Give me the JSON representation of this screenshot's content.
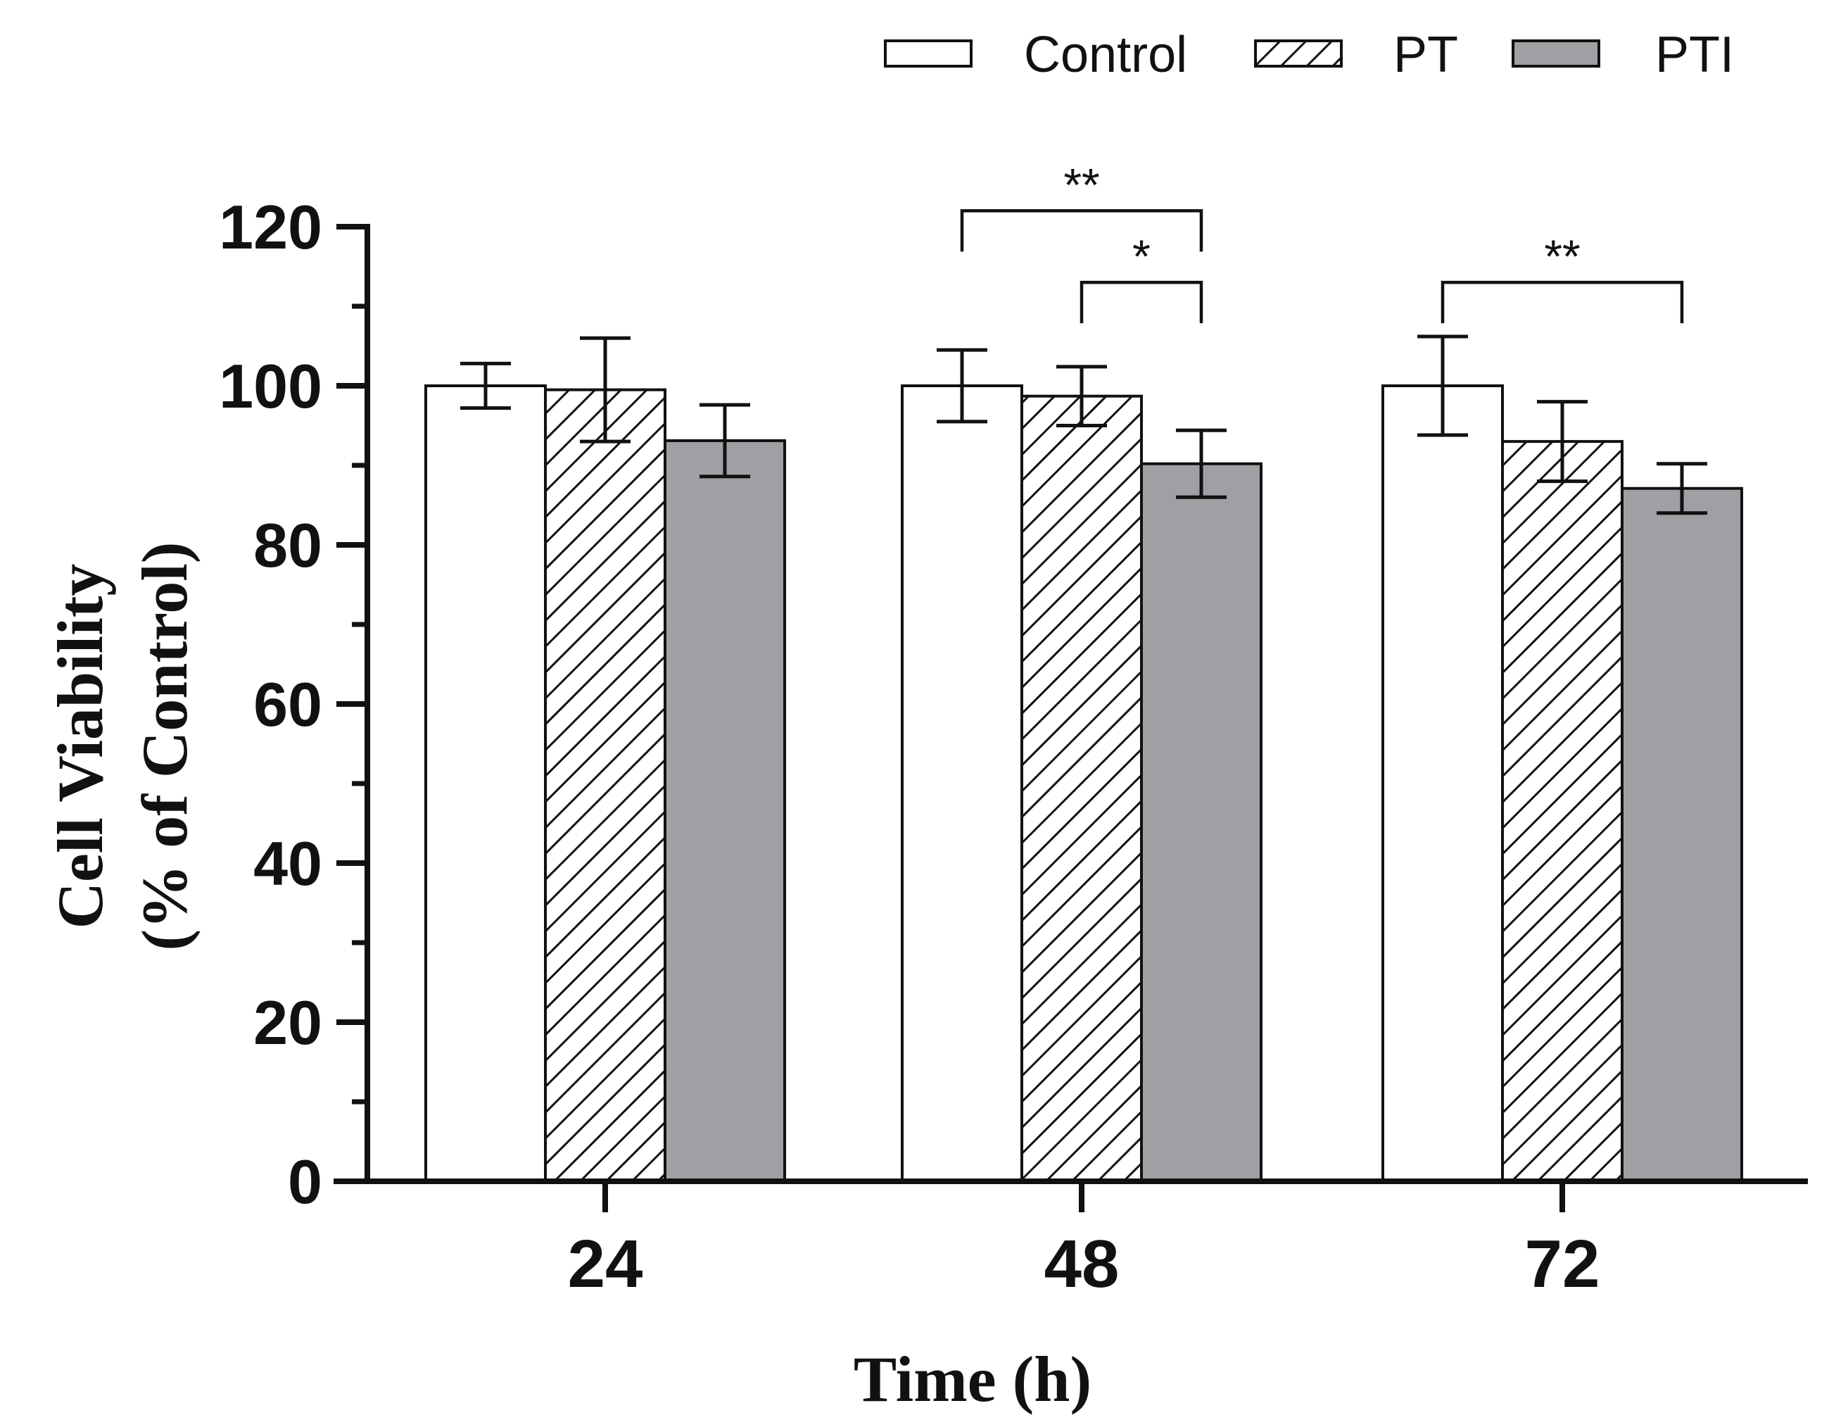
{
  "chart_data": {
    "type": "bar",
    "title": "",
    "xlabel": "Time (h)",
    "ylabel_lines": [
      "Cell Viability",
      "(% of Control)"
    ],
    "ylim": [
      0,
      120
    ],
    "yticks": [
      0,
      20,
      40,
      60,
      80,
      100,
      120
    ],
    "categories": [
      "24",
      "48",
      "72"
    ],
    "series": [
      {
        "name": "Control",
        "values": [
          100,
          100,
          100
        ],
        "errors": [
          2.8,
          4.5,
          6.2
        ],
        "fill": "#ffffff",
        "pattern": "none"
      },
      {
        "name": "PT",
        "values": [
          99.5,
          98.7,
          93.0
        ],
        "errors": [
          6.5,
          3.7,
          5.0
        ],
        "fill": "#ffffff",
        "pattern": "hatch"
      },
      {
        "name": "PTI",
        "values": [
          93.1,
          90.2,
          87.1
        ],
        "errors": [
          4.5,
          4.2,
          3.1
        ],
        "fill": "#a0a0a4",
        "pattern": "none"
      }
    ],
    "significance": [
      {
        "category": "48",
        "from_series": 0,
        "to_series": 2,
        "label": "**",
        "level": 122
      },
      {
        "category": "48",
        "from_series": 1,
        "to_series": 2,
        "label": "*",
        "level": 113
      },
      {
        "category": "72",
        "from_series": 0,
        "to_series": 2,
        "label": "**",
        "level": 113
      }
    ],
    "legend_position": "top-right",
    "grid": false
  }
}
